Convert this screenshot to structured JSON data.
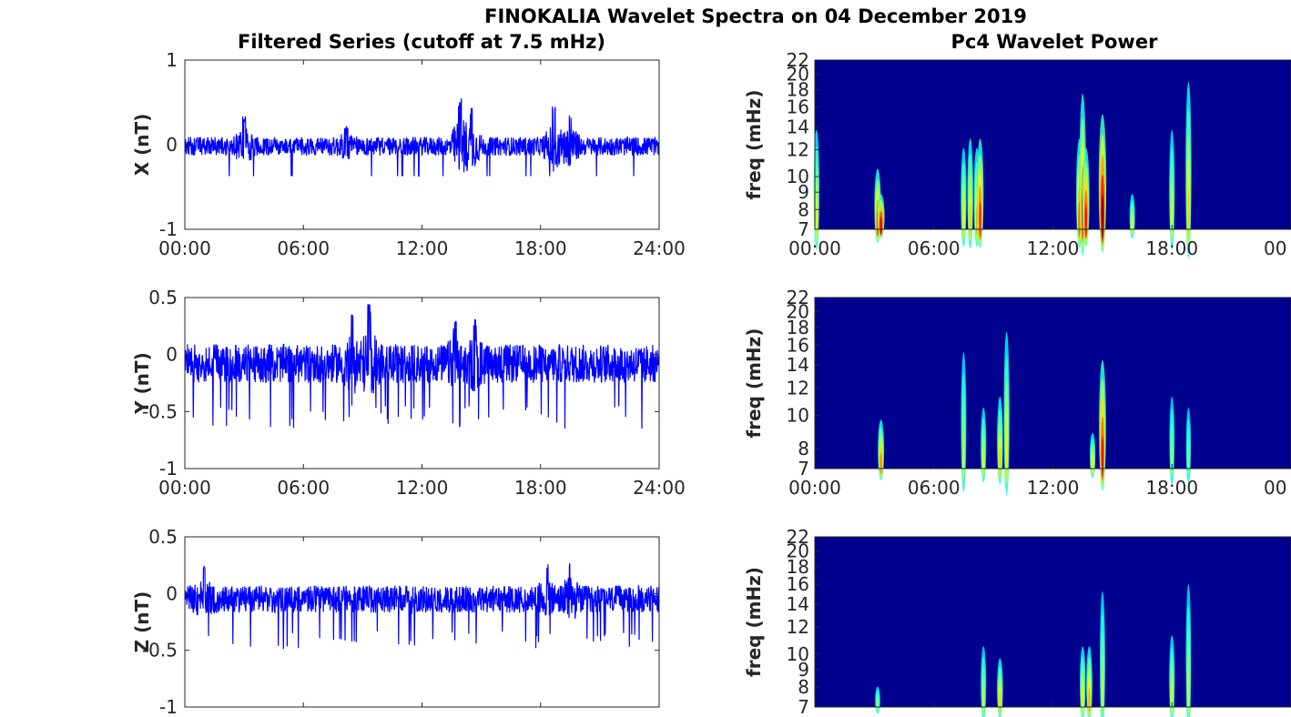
{
  "figure": {
    "title": "FINOKALIA Wavelet Spectra on 04 December 2019",
    "left_title": "Filtered Series (cutoff at 7.5 mHz)",
    "right_title": "Pc4 Wavelet Power"
  },
  "colors": {
    "series": "#0000ff",
    "spectrum_background": "#00008f",
    "axes": "#262626"
  },
  "chart_data": [
    {
      "type": "line",
      "name": "X series",
      "ylabel": "X (nT)",
      "xlim": [
        "00:00",
        "24:00"
      ],
      "xticks": [
        "00:00",
        "06:00",
        "12:00",
        "18:00",
        "24:00"
      ],
      "ylim": [
        -1,
        1
      ],
      "yticks": [
        "1",
        "0",
        "-1"
      ],
      "ytick_values": [
        1,
        0,
        -1
      ],
      "baseline": -0.02,
      "noise_amplitude": 0.11,
      "bursts": [
        {
          "time": "03:00",
          "peak": 0.34
        },
        {
          "time": "08:10",
          "peak": 0.22
        },
        {
          "time": "13:55",
          "peak": 0.55
        },
        {
          "time": "14:30",
          "peak": 0.45
        },
        {
          "time": "18:40",
          "peak": 0.48
        },
        {
          "time": "19:30",
          "peak": 0.38
        }
      ]
    },
    {
      "type": "line",
      "name": "Y series",
      "ylabel": "Y (nT)",
      "xlim": [
        "00:00",
        "24:00"
      ],
      "xticks": [
        "00:00",
        "06:00",
        "12:00",
        "18:00",
        "24:00"
      ],
      "ylim": [
        -1,
        0.5
      ],
      "yticks": [
        "0.5",
        "0",
        "-0.5",
        "-1"
      ],
      "ytick_values": [
        0.5,
        0,
        -0.5,
        -1
      ],
      "baseline": -0.08,
      "noise_amplitude": 0.17,
      "bursts": [
        {
          "time": "08:30",
          "peak": 0.38
        },
        {
          "time": "09:20",
          "peak": 0.46
        },
        {
          "time": "13:40",
          "peak": 0.3
        },
        {
          "time": "14:40",
          "peak": 0.33
        }
      ],
      "dips": -0.6
    },
    {
      "type": "line",
      "name": "Z series",
      "ylabel": "Z (nT)",
      "xlim": [
        "00:00",
        "24:00"
      ],
      "xticks": [],
      "ylim": [
        -1,
        0.5
      ],
      "yticks": [
        "0.5",
        "0",
        "-0.5",
        "-1"
      ],
      "ytick_values": [
        0.5,
        0,
        -0.5,
        -1
      ],
      "baseline": -0.05,
      "noise_amplitude": 0.12,
      "bursts": [
        {
          "time": "01:00",
          "peak": 0.26
        },
        {
          "time": "18:20",
          "peak": 0.28
        },
        {
          "time": "19:30",
          "peak": 0.29
        }
      ],
      "dips": -0.45
    },
    {
      "type": "heatmap",
      "name": "X wavelet power",
      "ylabel": "freq (mHz)",
      "xticks": [
        "00:00",
        "06:00",
        "12:00",
        "18:00",
        "00"
      ],
      "ylim_mHz": [
        7,
        22
      ],
      "yticks": [
        "22",
        "20",
        "18",
        "16",
        "14",
        "12",
        "10",
        "9",
        "8",
        "7"
      ],
      "ytick_values": [
        22,
        20,
        18,
        16,
        14,
        12,
        10,
        9,
        8,
        7
      ],
      "events": [
        {
          "time": "00:05",
          "top_mHz": 15,
          "intensity": 0.5
        },
        {
          "time": "03:10",
          "top_mHz": 11,
          "intensity": 0.75
        },
        {
          "time": "03:20",
          "top_mHz": 9,
          "intensity": 0.9
        },
        {
          "time": "07:30",
          "top_mHz": 13,
          "intensity": 0.5
        },
        {
          "time": "07:50",
          "top_mHz": 14,
          "intensity": 0.55
        },
        {
          "time": "08:10",
          "top_mHz": 13,
          "intensity": 0.6
        },
        {
          "time": "08:20",
          "top_mHz": 14,
          "intensity": 0.8
        },
        {
          "time": "13:20",
          "top_mHz": 14,
          "intensity": 0.7
        },
        {
          "time": "13:30",
          "top_mHz": 20,
          "intensity": 0.75
        },
        {
          "time": "13:40",
          "top_mHz": 13,
          "intensity": 0.85
        },
        {
          "time": "14:30",
          "top_mHz": 17,
          "intensity": 1.0
        },
        {
          "time": "16:00",
          "top_mHz": 9,
          "intensity": 0.45
        },
        {
          "time": "18:00",
          "top_mHz": 15,
          "intensity": 0.45
        },
        {
          "time": "18:50",
          "top_mHz": 22,
          "intensity": 0.55
        }
      ]
    },
    {
      "type": "heatmap",
      "name": "Y wavelet power",
      "ylabel": "freq (mHz)",
      "xticks": [
        "00:00",
        "06:00",
        "12:00",
        "18:00",
        "00"
      ],
      "ylim_mHz": [
        7,
        22
      ],
      "yticks": [
        "22",
        "20",
        "18",
        "16",
        "14",
        "12",
        "10",
        "8",
        "7"
      ],
      "ytick_values": [
        22,
        20,
        18,
        16,
        14,
        12,
        10,
        8,
        7
      ],
      "events": [
        {
          "time": "03:20",
          "top_mHz": 10,
          "intensity": 0.65
        },
        {
          "time": "07:30",
          "top_mHz": 17,
          "intensity": 0.4
        },
        {
          "time": "08:30",
          "top_mHz": 11,
          "intensity": 0.45
        },
        {
          "time": "09:20",
          "top_mHz": 12,
          "intensity": 0.55
        },
        {
          "time": "09:40",
          "top_mHz": 20,
          "intensity": 0.5
        },
        {
          "time": "14:00",
          "top_mHz": 9,
          "intensity": 0.5
        },
        {
          "time": "14:30",
          "top_mHz": 16,
          "intensity": 0.85
        },
        {
          "time": "18:00",
          "top_mHz": 12,
          "intensity": 0.35
        },
        {
          "time": "18:50",
          "top_mHz": 11,
          "intensity": 0.3
        }
      ]
    },
    {
      "type": "heatmap",
      "name": "Z wavelet power",
      "ylabel": "freq (mHz)",
      "xticks": [],
      "ylim_mHz": [
        7,
        22
      ],
      "yticks": [
        "22",
        "20",
        "18",
        "16",
        "14",
        "12",
        "10",
        "9",
        "8",
        "7"
      ],
      "ytick_values": [
        22,
        20,
        18,
        16,
        14,
        12,
        10,
        9,
        8,
        7
      ],
      "events": [
        {
          "time": "03:10",
          "top_mHz": 8,
          "intensity": 0.35
        },
        {
          "time": "08:30",
          "top_mHz": 11,
          "intensity": 0.4
        },
        {
          "time": "09:20",
          "top_mHz": 10,
          "intensity": 0.55
        },
        {
          "time": "13:30",
          "top_mHz": 11,
          "intensity": 0.5
        },
        {
          "time": "13:50",
          "top_mHz": 11,
          "intensity": 0.6
        },
        {
          "time": "14:30",
          "top_mHz": 17,
          "intensity": 0.4
        },
        {
          "time": "18:00",
          "top_mHz": 12,
          "intensity": 0.45
        },
        {
          "time": "18:50",
          "top_mHz": 18,
          "intensity": 0.4
        }
      ]
    }
  ]
}
